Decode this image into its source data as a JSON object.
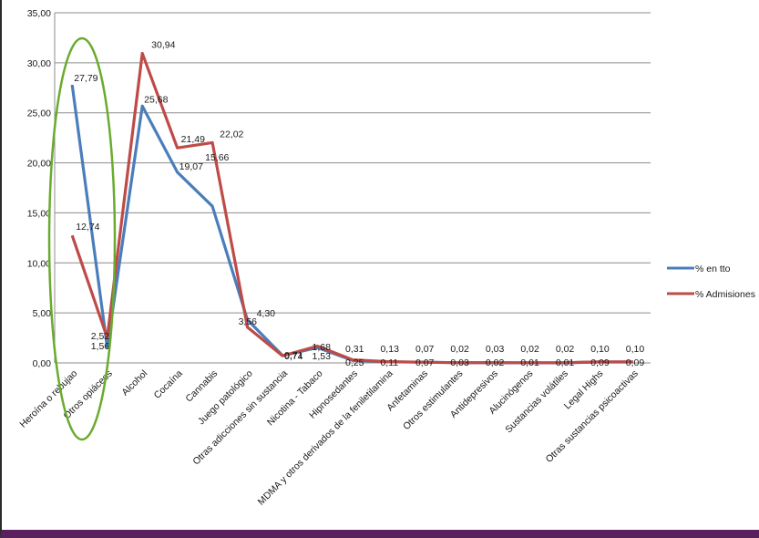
{
  "chart_data": {
    "type": "line",
    "ylim": [
      0,
      35
    ],
    "yticks": [
      "0,00",
      "5,00",
      "10,00",
      "15,00",
      "20,00",
      "25,00",
      "30,00",
      "35,00"
    ],
    "categories": [
      "Heroína o rebujao",
      "Otros opiáceos",
      "Alcohol",
      "Cocaína",
      "Cannabis",
      "Juego patológico",
      "Otras adicciones sin sustancia",
      "Nicotina - Tabaco",
      "Hipnosedantes",
      "MDMA y otros derivados de la feniletilamina",
      "Anfetaminas",
      "Otros estimulantes",
      "Antidepresivos",
      "Alucinógenos",
      "Sustancias volátiles",
      "Legal Highs",
      "Otras sustancias psicoactivas"
    ],
    "series": [
      {
        "name": "% en tto",
        "color": "#4a7ebb",
        "values": [
          27.79,
          1.56,
          25.68,
          19.07,
          15.66,
          4.3,
          0.74,
          1.53,
          0.25,
          0.11,
          0.07,
          0.03,
          0.02,
          0.01,
          0.01,
          0.09,
          0.09
        ],
        "labels": [
          "27,79",
          "1,56",
          "25,68",
          "19,07",
          "15,66",
          "4,30",
          "0,74",
          "1,53",
          "0,25",
          "0,11",
          "0,07",
          "0,03",
          "0,02",
          "0,01",
          "0,01",
          "0,09",
          "0,09"
        ]
      },
      {
        "name": "% Admisiones",
        "color": "#be4b48",
        "values": [
          12.74,
          2.52,
          30.94,
          21.49,
          22.02,
          3.56,
          0.71,
          1.68,
          0.31,
          0.13,
          0.07,
          0.02,
          0.03,
          0.02,
          0.02,
          0.1,
          0.1
        ],
        "labels": [
          "12,74",
          "2,52",
          "30,94",
          "21,49",
          "22,02",
          "3,56",
          "0,71",
          "1,68",
          "0,31",
          "0,13",
          "0,07",
          "0,02",
          "0,03",
          "0,02",
          "0,02",
          "0,10",
          "0,10"
        ]
      }
    ],
    "grid": true,
    "legend": "right",
    "annotation": {
      "shape": "ellipse",
      "color": "#6aab2e",
      "around": "Heroína o rebujao, Otros opiáceos"
    }
  }
}
